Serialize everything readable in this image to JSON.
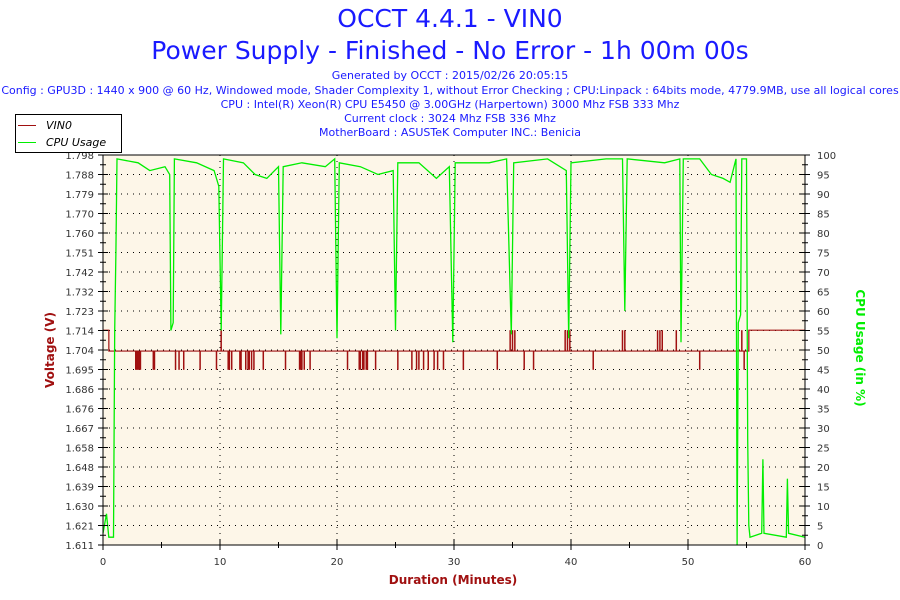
{
  "header": {
    "title": "OCCT 4.4.1 - VIN0",
    "subtitle": "Power Supply - Finished - No Error - 1h 00m 00s",
    "lines": [
      "Generated by OCCT : 2015/02/26 20:05:15",
      "Config : GPU3D : 1440 x 900 @ 60 Hz, Windowed mode, Shader Complexity 1, without Error Checking ; CPU:Linpack : 64bits mode, 4779.9MB, use all logical cores",
      "CPU : Intel(R) Xeon(R) CPU E5450 @ 3.00GHz (Harpertown) 3000 Mhz FSB 333 Mhz",
      "Current clock : 3024 Mhz FSB 336 Mhz",
      "MotherBoard : ASUSTeK Computer INC.: Benicia"
    ]
  },
  "chart_data": {
    "type": "line",
    "xlabel": "Duration (Minutes)",
    "ylabel_left": "Voltage (V)",
    "ylabel_right": "CPU Usage (in %)",
    "xlim": [
      0,
      60
    ],
    "x_ticks": [
      "0",
      "10",
      "20",
      "30",
      "40",
      "50",
      "60"
    ],
    "ylim_left": [
      1.611,
      1.798
    ],
    "y_ticks_left": [
      "1.611",
      "1.621",
      "1.630",
      "1.639",
      "1.648",
      "1.658",
      "1.667",
      "1.676",
      "1.686",
      "1.695",
      "1.704",
      "1.714",
      "1.723",
      "1.732",
      "1.742",
      "1.751",
      "1.760",
      "1.770",
      "1.779",
      "1.788",
      "1.798"
    ],
    "ylim_right": [
      0,
      100
    ],
    "y_ticks_right": [
      "0",
      "5",
      "10",
      "15",
      "20",
      "25",
      "30",
      "35",
      "40",
      "45",
      "50",
      "55",
      "60",
      "65",
      "70",
      "75",
      "80",
      "85",
      "90",
      "95",
      "100"
    ],
    "grid": true,
    "legend": {
      "placement": "top-left",
      "entries": [
        "VIN0",
        "CPU Usage"
      ]
    },
    "colors": {
      "voltage": "#a01010",
      "cpu": "#00ee00",
      "plot_bg": "#fdf6e8",
      "title": "#1a1aff"
    },
    "series": [
      {
        "name": "VIN0",
        "base": 1.704,
        "segments": [
          [
            0,
            0.5,
            1.714
          ],
          [
            0.5,
            55.2,
            1.704
          ],
          [
            55.2,
            60,
            1.714
          ]
        ],
        "dips_to_1_695": [
          2.8,
          2.9,
          3.0,
          3.1,
          3.2,
          4.3,
          4.4,
          6.2,
          6.5,
          6.9,
          8.3,
          9.7,
          10.7,
          10.8,
          11.0,
          11.7,
          11.8,
          12.2,
          12.4,
          12.5,
          12.7,
          12.9,
          13.7,
          15.6,
          16.8,
          16.9,
          17.0,
          17.2,
          17.7,
          20.9,
          21.9,
          22.0,
          22.2,
          22.3,
          22.5,
          22.6,
          23.3,
          25.2,
          26.4,
          26.8,
          27.0,
          27.4,
          27.8,
          28.3,
          28.6,
          29.1,
          30.8,
          33.7,
          36.0,
          36.8,
          41.9,
          51.0,
          54.8
        ],
        "spikes_to_1_714": [
          10.1,
          34.8,
          35.0,
          35.2,
          39.5,
          39.7,
          39.9,
          44.4,
          44.6,
          47.4,
          47.6,
          47.8,
          49.0,
          54.6
        ]
      },
      {
        "name": "CPU Usage",
        "points": [
          [
            0,
            3
          ],
          [
            0.3,
            8
          ],
          [
            0.5,
            2
          ],
          [
            0.9,
            2
          ],
          [
            1.0,
            55
          ],
          [
            1.1,
            75
          ],
          [
            1.2,
            99
          ],
          [
            3,
            98
          ],
          [
            4,
            96
          ],
          [
            5.3,
            97
          ],
          [
            5.7,
            95
          ],
          [
            5.8,
            55
          ],
          [
            6.0,
            57
          ],
          [
            6.1,
            99
          ],
          [
            8,
            98
          ],
          [
            9.5,
            96
          ],
          [
            9.9,
            92
          ],
          [
            10.1,
            55
          ],
          [
            10.3,
            99
          ],
          [
            12,
            98
          ],
          [
            13,
            95
          ],
          [
            14,
            94
          ],
          [
            15.0,
            97
          ],
          [
            15.2,
            54
          ],
          [
            15.4,
            97
          ],
          [
            17,
            98
          ],
          [
            19,
            97
          ],
          [
            19.8,
            99
          ],
          [
            20.0,
            53
          ],
          [
            20.2,
            98
          ],
          [
            22,
            97
          ],
          [
            23.5,
            95
          ],
          [
            24.8,
            96
          ],
          [
            25.0,
            55
          ],
          [
            25.2,
            98
          ],
          [
            27,
            98
          ],
          [
            28.5,
            94
          ],
          [
            29.6,
            97
          ],
          [
            29.9,
            52
          ],
          [
            30.1,
            98
          ],
          [
            33,
            98
          ],
          [
            34.5,
            99
          ],
          [
            34.9,
            54
          ],
          [
            35.1,
            98
          ],
          [
            38,
            99
          ],
          [
            39.6,
            96
          ],
          [
            39.8,
            53
          ],
          [
            40.0,
            98
          ],
          [
            43,
            99
          ],
          [
            44.4,
            99
          ],
          [
            44.6,
            60
          ],
          [
            44.8,
            99
          ],
          [
            48,
            98
          ],
          [
            49.3,
            99
          ],
          [
            49.4,
            52
          ],
          [
            49.6,
            99
          ],
          [
            51,
            99
          ],
          [
            52,
            95
          ],
          [
            53,
            94
          ],
          [
            53.6,
            93
          ],
          [
            54.1,
            99
          ],
          [
            54.2,
            0
          ],
          [
            54.3,
            57
          ],
          [
            54.5,
            59
          ],
          [
            54.6,
            99
          ],
          [
            55.0,
            99
          ],
          [
            55.1,
            27
          ],
          [
            55.2,
            5
          ],
          [
            55.3,
            2
          ],
          [
            56.3,
            3
          ],
          [
            56.4,
            22
          ],
          [
            56.5,
            3
          ],
          [
            58.4,
            2
          ],
          [
            58.5,
            17
          ],
          [
            58.6,
            3
          ],
          [
            60,
            2
          ]
        ]
      }
    ]
  }
}
